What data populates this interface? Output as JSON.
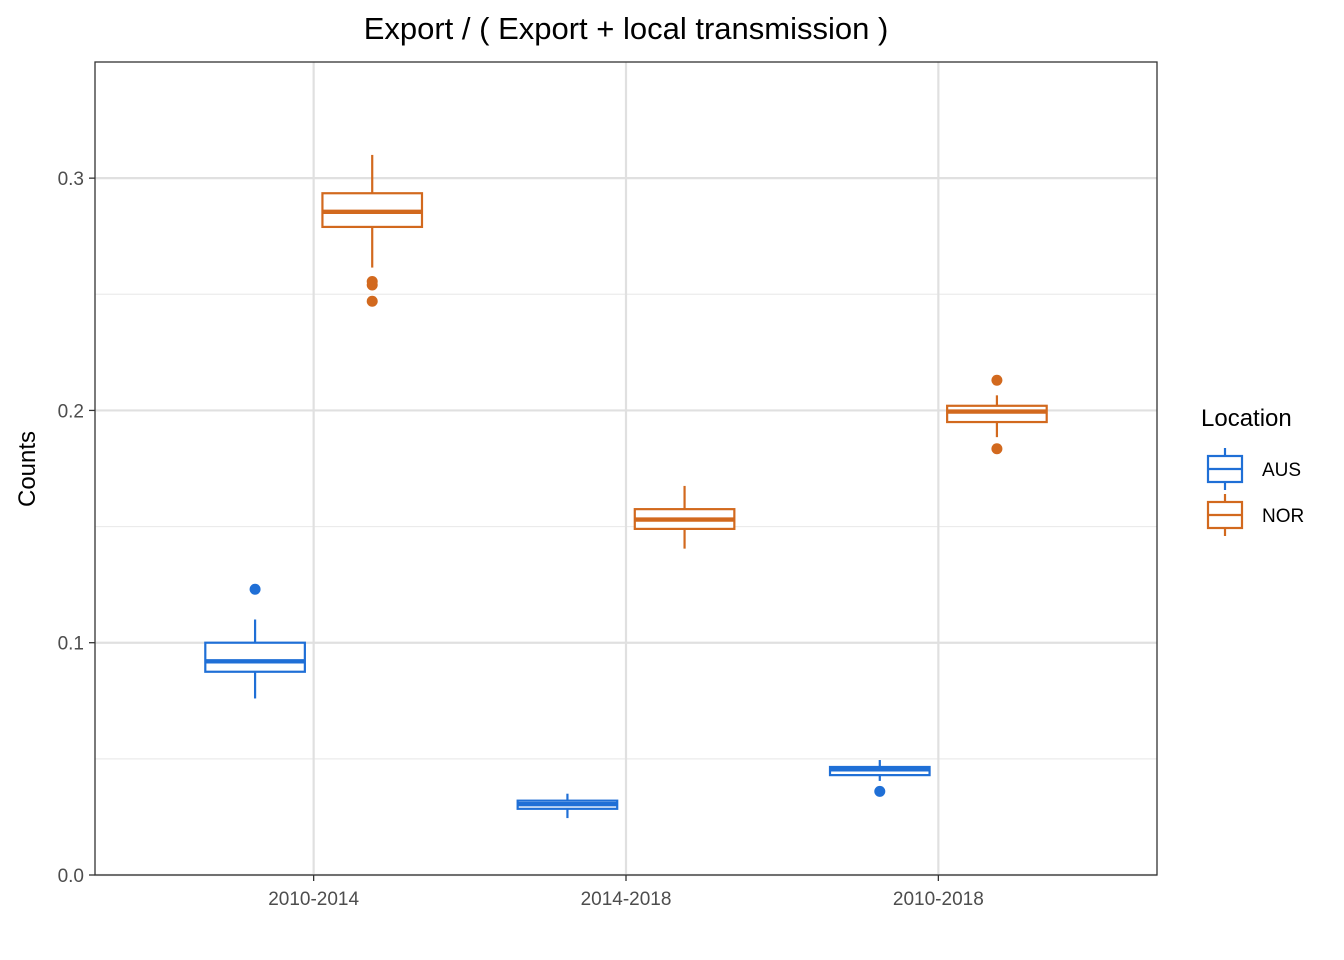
{
  "chart_data": {
    "type": "boxplot",
    "title": "Export / ( Export + local transmission )",
    "xlabel": "",
    "ylabel": "Counts",
    "categories": [
      "2010-2014",
      "2014-2018",
      "2010-2018"
    ],
    "ylim": [
      0,
      0.35
    ],
    "y_ticks": [
      0.0,
      0.1,
      0.2,
      0.3
    ],
    "y_tick_labels": [
      "0.0",
      "0.1",
      "0.2",
      "0.3"
    ],
    "grid": true,
    "legend": {
      "title": "Location",
      "position": "right"
    },
    "series": [
      {
        "name": "AUS",
        "color": "#1f6fd6",
        "boxes": [
          {
            "category": "2010-2014",
            "q1": 0.0875,
            "median": 0.092,
            "q3": 0.1,
            "whisker_low": 0.076,
            "whisker_high": 0.11,
            "outliers": [
              0.123
            ]
          },
          {
            "category": "2014-2018",
            "q1": 0.0285,
            "median": 0.0305,
            "q3": 0.032,
            "whisker_low": 0.0245,
            "whisker_high": 0.035,
            "outliers": []
          },
          {
            "category": "2010-2018",
            "q1": 0.043,
            "median": 0.0455,
            "q3": 0.0465,
            "whisker_low": 0.0405,
            "whisker_high": 0.0495,
            "outliers": [
              0.036
            ]
          }
        ]
      },
      {
        "name": "NOR",
        "color": "#d2691e",
        "boxes": [
          {
            "category": "2010-2014",
            "q1": 0.279,
            "median": 0.2855,
            "q3": 0.2935,
            "whisker_low": 0.2615,
            "whisker_high": 0.31,
            "outliers": [
              0.254,
              0.2555,
              0.247
            ]
          },
          {
            "category": "2014-2018",
            "q1": 0.149,
            "median": 0.153,
            "q3": 0.1575,
            "whisker_low": 0.1405,
            "whisker_high": 0.1675,
            "outliers": []
          },
          {
            "category": "2010-2018",
            "q1": 0.195,
            "median": 0.1995,
            "q3": 0.202,
            "whisker_low": 0.1885,
            "whisker_high": 0.2065,
            "outliers": [
              0.213,
              0.1835
            ]
          }
        ]
      }
    ]
  }
}
